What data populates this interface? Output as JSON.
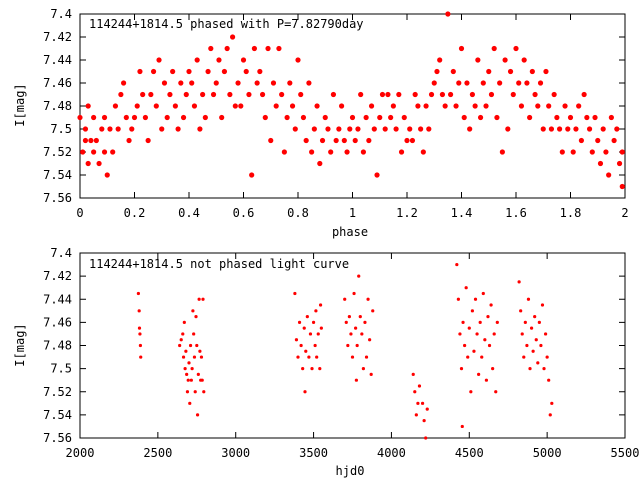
{
  "chart_data": [
    {
      "type": "scatter",
      "title": "114244+1814.5 phased with P=7.82790day",
      "xlabel": "phase",
      "ylabel": "I[mag]",
      "xlim": [
        0,
        2
      ],
      "ylim": [
        7.56,
        7.4
      ],
      "y_inverted": true,
      "xticks": [
        0,
        0.2,
        0.4,
        0.6,
        0.8,
        1,
        1.2,
        1.4,
        1.6,
        1.8,
        2
      ],
      "xtick_labels": [
        "0",
        "0.2",
        "0.4",
        "0.6",
        "0.8",
        "1",
        "1.2",
        "1.4",
        "1.6",
        "1.8",
        "2"
      ],
      "yticks": [
        7.4,
        7.42,
        7.44,
        7.46,
        7.48,
        7.5,
        7.52,
        7.54,
        7.56
      ],
      "ytick_labels": [
        "7.4",
        "7.42",
        "7.44",
        "7.46",
        "7.48",
        "7.5",
        "7.52",
        "7.54",
        "7.56"
      ],
      "grid": false,
      "marker_color": "#ff0000",
      "marker": "filled-circle",
      "points": [
        [
          0.0,
          7.49
        ],
        [
          0.01,
          7.52
        ],
        [
          0.02,
          7.5
        ],
        [
          0.02,
          7.51
        ],
        [
          0.03,
          7.48
        ],
        [
          0.03,
          7.53
        ],
        [
          0.04,
          7.51
        ],
        [
          0.05,
          7.52
        ],
        [
          0.05,
          7.49
        ],
        [
          0.06,
          7.51
        ],
        [
          0.07,
          7.53
        ],
        [
          0.08,
          7.5
        ],
        [
          0.09,
          7.49
        ],
        [
          0.09,
          7.52
        ],
        [
          0.1,
          7.54
        ],
        [
          0.11,
          7.5
        ],
        [
          0.12,
          7.52
        ],
        [
          0.13,
          7.48
        ],
        [
          0.14,
          7.5
        ],
        [
          0.15,
          7.47
        ],
        [
          0.16,
          7.46
        ],
        [
          0.17,
          7.49
        ],
        [
          0.18,
          7.51
        ],
        [
          0.19,
          7.5
        ],
        [
          0.2,
          7.49
        ],
        [
          0.21,
          7.48
        ],
        [
          0.22,
          7.45
        ],
        [
          0.23,
          7.47
        ],
        [
          0.24,
          7.49
        ],
        [
          0.25,
          7.51
        ],
        [
          0.26,
          7.47
        ],
        [
          0.27,
          7.45
        ],
        [
          0.28,
          7.48
        ],
        [
          0.29,
          7.44
        ],
        [
          0.3,
          7.5
        ],
        [
          0.31,
          7.46
        ],
        [
          0.32,
          7.49
        ],
        [
          0.33,
          7.47
        ],
        [
          0.34,
          7.45
        ],
        [
          0.35,
          7.48
        ],
        [
          0.36,
          7.5
        ],
        [
          0.37,
          7.46
        ],
        [
          0.38,
          7.49
        ],
        [
          0.39,
          7.47
        ],
        [
          0.4,
          7.45
        ],
        [
          0.41,
          7.46
        ],
        [
          0.42,
          7.48
        ],
        [
          0.43,
          7.44
        ],
        [
          0.44,
          7.5
        ],
        [
          0.45,
          7.47
        ],
        [
          0.46,
          7.49
        ],
        [
          0.47,
          7.45
        ],
        [
          0.48,
          7.43
        ],
        [
          0.49,
          7.47
        ],
        [
          0.5,
          7.46
        ],
        [
          0.51,
          7.44
        ],
        [
          0.52,
          7.49
        ],
        [
          0.53,
          7.45
        ],
        [
          0.54,
          7.43
        ],
        [
          0.55,
          7.47
        ],
        [
          0.56,
          7.42
        ],
        [
          0.57,
          7.48
        ],
        [
          0.58,
          7.46
        ],
        [
          0.59,
          7.48
        ],
        [
          0.6,
          7.44
        ],
        [
          0.61,
          7.45
        ],
        [
          0.62,
          7.47
        ],
        [
          0.63,
          7.54
        ],
        [
          0.64,
          7.43
        ],
        [
          0.65,
          7.46
        ],
        [
          0.66,
          7.45
        ],
        [
          0.67,
          7.47
        ],
        [
          0.68,
          7.49
        ],
        [
          0.69,
          7.43
        ],
        [
          0.7,
          7.51
        ],
        [
          0.71,
          7.46
        ],
        [
          0.72,
          7.48
        ],
        [
          0.73,
          7.43
        ],
        [
          0.74,
          7.47
        ],
        [
          0.75,
          7.52
        ],
        [
          0.76,
          7.49
        ],
        [
          0.77,
          7.46
        ],
        [
          0.78,
          7.48
        ],
        [
          0.79,
          7.5
        ],
        [
          0.8,
          7.44
        ],
        [
          0.81,
          7.47
        ],
        [
          0.82,
          7.49
        ],
        [
          0.83,
          7.51
        ],
        [
          0.84,
          7.46
        ],
        [
          0.85,
          7.52
        ],
        [
          0.86,
          7.5
        ],
        [
          0.87,
          7.48
        ],
        [
          0.88,
          7.53
        ],
        [
          0.89,
          7.51
        ],
        [
          0.9,
          7.49
        ],
        [
          0.91,
          7.5
        ],
        [
          0.92,
          7.52
        ],
        [
          0.93,
          7.47
        ],
        [
          0.94,
          7.51
        ],
        [
          0.95,
          7.5
        ],
        [
          0.96,
          7.48
        ],
        [
          0.97,
          7.51
        ],
        [
          0.98,
          7.52
        ],
        [
          0.99,
          7.5
        ],
        [
          1.0,
          7.49
        ],
        [
          1.01,
          7.51
        ],
        [
          1.02,
          7.5
        ],
        [
          1.03,
          7.47
        ],
        [
          1.04,
          7.52
        ],
        [
          1.05,
          7.49
        ],
        [
          1.06,
          7.51
        ],
        [
          1.07,
          7.48
        ],
        [
          1.08,
          7.5
        ],
        [
          1.09,
          7.54
        ],
        [
          1.1,
          7.49
        ],
        [
          1.11,
          7.47
        ],
        [
          1.12,
          7.5
        ],
        [
          1.13,
          7.47
        ],
        [
          1.14,
          7.49
        ],
        [
          1.15,
          7.48
        ],
        [
          1.16,
          7.5
        ],
        [
          1.17,
          7.47
        ],
        [
          1.18,
          7.52
        ],
        [
          1.19,
          7.49
        ],
        [
          1.2,
          7.51
        ],
        [
          1.21,
          7.5
        ],
        [
          1.22,
          7.51
        ],
        [
          1.23,
          7.47
        ],
        [
          1.24,
          7.48
        ],
        [
          1.25,
          7.5
        ],
        [
          1.26,
          7.52
        ],
        [
          1.27,
          7.48
        ],
        [
          1.28,
          7.5
        ],
        [
          1.29,
          7.47
        ],
        [
          1.3,
          7.46
        ],
        [
          1.31,
          7.45
        ],
        [
          1.32,
          7.44
        ],
        [
          1.33,
          7.47
        ],
        [
          1.34,
          7.48
        ],
        [
          1.35,
          7.4
        ],
        [
          1.36,
          7.47
        ],
        [
          1.37,
          7.45
        ],
        [
          1.38,
          7.48
        ],
        [
          1.39,
          7.46
        ],
        [
          1.4,
          7.43
        ],
        [
          1.41,
          7.49
        ],
        [
          1.42,
          7.46
        ],
        [
          1.43,
          7.5
        ],
        [
          1.44,
          7.47
        ],
        [
          1.45,
          7.48
        ],
        [
          1.46,
          7.44
        ],
        [
          1.47,
          7.49
        ],
        [
          1.48,
          7.46
        ],
        [
          1.49,
          7.48
        ],
        [
          1.5,
          7.45
        ],
        [
          1.51,
          7.47
        ],
        [
          1.52,
          7.43
        ],
        [
          1.53,
          7.49
        ],
        [
          1.54,
          7.46
        ],
        [
          1.55,
          7.52
        ],
        [
          1.56,
          7.44
        ],
        [
          1.57,
          7.5
        ],
        [
          1.58,
          7.45
        ],
        [
          1.59,
          7.47
        ],
        [
          1.6,
          7.43
        ],
        [
          1.61,
          7.46
        ],
        [
          1.62,
          7.48
        ],
        [
          1.63,
          7.44
        ],
        [
          1.64,
          7.46
        ],
        [
          1.65,
          7.49
        ],
        [
          1.66,
          7.45
        ],
        [
          1.67,
          7.47
        ],
        [
          1.68,
          7.48
        ],
        [
          1.69,
          7.46
        ],
        [
          1.7,
          7.5
        ],
        [
          1.71,
          7.45
        ],
        [
          1.72,
          7.48
        ],
        [
          1.73,
          7.5
        ],
        [
          1.74,
          7.47
        ],
        [
          1.75,
          7.49
        ],
        [
          1.76,
          7.5
        ],
        [
          1.77,
          7.52
        ],
        [
          1.78,
          7.48
        ],
        [
          1.79,
          7.5
        ],
        [
          1.8,
          7.49
        ],
        [
          1.81,
          7.52
        ],
        [
          1.82,
          7.5
        ],
        [
          1.83,
          7.48
        ],
        [
          1.84,
          7.51
        ],
        [
          1.85,
          7.47
        ],
        [
          1.86,
          7.49
        ],
        [
          1.87,
          7.5
        ],
        [
          1.88,
          7.52
        ],
        [
          1.89,
          7.49
        ],
        [
          1.9,
          7.51
        ],
        [
          1.91,
          7.53
        ],
        [
          1.92,
          7.5
        ],
        [
          1.93,
          7.52
        ],
        [
          1.94,
          7.54
        ],
        [
          1.95,
          7.49
        ],
        [
          1.96,
          7.51
        ],
        [
          1.97,
          7.5
        ],
        [
          1.98,
          7.53
        ],
        [
          1.99,
          7.55
        ],
        [
          1.99,
          7.52
        ]
      ]
    },
    {
      "type": "scatter",
      "title": "114244+1814.5 not phased light curve",
      "xlabel": "hjd0",
      "ylabel": "I[mag]",
      "xlim": [
        2000,
        5500
      ],
      "ylim": [
        7.56,
        7.4
      ],
      "y_inverted": true,
      "xticks": [
        2000,
        2500,
        3000,
        3500,
        4000,
        4500,
        5000,
        5500
      ],
      "xtick_labels": [
        "2000",
        "2500",
        "3000",
        "3500",
        "4000",
        "4500",
        "5000",
        "5500"
      ],
      "yticks": [
        7.4,
        7.42,
        7.44,
        7.46,
        7.48,
        7.5,
        7.52,
        7.54,
        7.56
      ],
      "ytick_labels": [
        "7.4",
        "7.42",
        "7.44",
        "7.46",
        "7.48",
        "7.5",
        "7.52",
        "7.54",
        "7.56"
      ],
      "grid": false,
      "marker_color": "#ff0000",
      "marker": "small-dot",
      "points": [
        [
          2375,
          7.435
        ],
        [
          2380,
          7.45
        ],
        [
          2382,
          7.465
        ],
        [
          2385,
          7.47
        ],
        [
          2388,
          7.48
        ],
        [
          2390,
          7.49
        ],
        [
          2640,
          7.48
        ],
        [
          2650,
          7.475
        ],
        [
          2660,
          7.47
        ],
        [
          2665,
          7.49
        ],
        [
          2670,
          7.46
        ],
        [
          2675,
          7.5
        ],
        [
          2680,
          7.485
        ],
        [
          2685,
          7.505
        ],
        [
          2690,
          7.52
        ],
        [
          2695,
          7.51
        ],
        [
          2700,
          7.495
        ],
        [
          2705,
          7.53
        ],
        [
          2710,
          7.48
        ],
        [
          2715,
          7.51
        ],
        [
          2720,
          7.5
        ],
        [
          2725,
          7.45
        ],
        [
          2730,
          7.47
        ],
        [
          2735,
          7.49
        ],
        [
          2740,
          7.52
        ],
        [
          2745,
          7.455
        ],
        [
          2750,
          7.48
        ],
        [
          2755,
          7.54
        ],
        [
          2760,
          7.505
        ],
        [
          2765,
          7.44
        ],
        [
          2770,
          7.485
        ],
        [
          2775,
          7.51
        ],
        [
          2780,
          7.49
        ],
        [
          2785,
          7.51
        ],
        [
          2790,
          7.44
        ],
        [
          2795,
          7.52
        ],
        [
          3380,
          7.435
        ],
        [
          3390,
          7.475
        ],
        [
          3400,
          7.49
        ],
        [
          3410,
          7.46
        ],
        [
          3420,
          7.48
        ],
        [
          3430,
          7.5
        ],
        [
          3440,
          7.465
        ],
        [
          3445,
          7.52
        ],
        [
          3450,
          7.485
        ],
        [
          3460,
          7.455
        ],
        [
          3470,
          7.49
        ],
        [
          3480,
          7.47
        ],
        [
          3490,
          7.5
        ],
        [
          3500,
          7.46
        ],
        [
          3510,
          7.48
        ],
        [
          3515,
          7.45
        ],
        [
          3520,
          7.49
        ],
        [
          3530,
          7.47
        ],
        [
          3540,
          7.5
        ],
        [
          3545,
          7.445
        ],
        [
          3550,
          7.465
        ],
        [
          3700,
          7.44
        ],
        [
          3710,
          7.46
        ],
        [
          3720,
          7.48
        ],
        [
          3730,
          7.455
        ],
        [
          3740,
          7.47
        ],
        [
          3750,
          7.49
        ],
        [
          3760,
          7.435
        ],
        [
          3770,
          7.465
        ],
        [
          3775,
          7.51
        ],
        [
          3780,
          7.48
        ],
        [
          3790,
          7.42
        ],
        [
          3800,
          7.455
        ],
        [
          3810,
          7.47
        ],
        [
          3820,
          7.5
        ],
        [
          3830,
          7.46
        ],
        [
          3840,
          7.49
        ],
        [
          3850,
          7.44
        ],
        [
          3860,
          7.475
        ],
        [
          3870,
          7.505
        ],
        [
          3880,
          7.45
        ],
        [
          4140,
          7.505
        ],
        [
          4150,
          7.52
        ],
        [
          4160,
          7.54
        ],
        [
          4170,
          7.53
        ],
        [
          4180,
          7.515
        ],
        [
          4200,
          7.53
        ],
        [
          4210,
          7.545
        ],
        [
          4220,
          7.56
        ],
        [
          4230,
          7.535
        ],
        [
          4420,
          7.41
        ],
        [
          4430,
          7.44
        ],
        [
          4440,
          7.47
        ],
        [
          4450,
          7.5
        ],
        [
          4455,
          7.55
        ],
        [
          4460,
          7.46
        ],
        [
          4470,
          7.48
        ],
        [
          4480,
          7.43
        ],
        [
          4490,
          7.49
        ],
        [
          4500,
          7.465
        ],
        [
          4510,
          7.52
        ],
        [
          4520,
          7.45
        ],
        [
          4530,
          7.485
        ],
        [
          4540,
          7.44
        ],
        [
          4550,
          7.47
        ],
        [
          4560,
          7.505
        ],
        [
          4570,
          7.46
        ],
        [
          4580,
          7.49
        ],
        [
          4590,
          7.435
        ],
        [
          4600,
          7.475
        ],
        [
          4610,
          7.51
        ],
        [
          4620,
          7.455
        ],
        [
          4630,
          7.48
        ],
        [
          4640,
          7.445
        ],
        [
          4650,
          7.5
        ],
        [
          4660,
          7.47
        ],
        [
          4670,
          7.52
        ],
        [
          4680,
          7.46
        ],
        [
          4820,
          7.425
        ],
        [
          4830,
          7.45
        ],
        [
          4840,
          7.47
        ],
        [
          4850,
          7.49
        ],
        [
          4860,
          7.46
        ],
        [
          4870,
          7.48
        ],
        [
          4880,
          7.44
        ],
        [
          4890,
          7.5
        ],
        [
          4900,
          7.465
        ],
        [
          4910,
          7.485
        ],
        [
          4920,
          7.455
        ],
        [
          4930,
          7.475
        ],
        [
          4940,
          7.495
        ],
        [
          4950,
          7.46
        ],
        [
          4960,
          7.48
        ],
        [
          4970,
          7.445
        ],
        [
          4980,
          7.5
        ],
        [
          4990,
          7.47
        ],
        [
          5000,
          7.49
        ],
        [
          5010,
          7.51
        ],
        [
          5020,
          7.54
        ],
        [
          5030,
          7.53
        ]
      ]
    }
  ]
}
